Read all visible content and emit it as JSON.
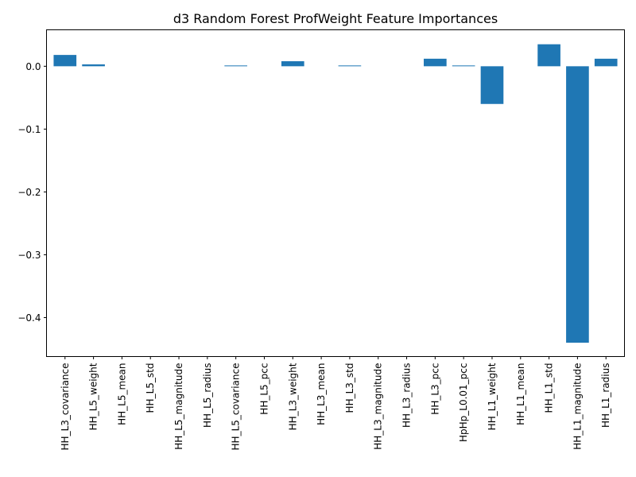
{
  "chart_data": {
    "type": "bar",
    "title": "d3 Random Forest ProfWeight Feature Importances",
    "xlabel": "",
    "ylabel": "",
    "categories": [
      "HH_L3_covariance",
      "HH_L5_weight",
      "HH_L5_mean",
      "HH_L5_std",
      "HH_L5_magnitude",
      "HH_L5_radius",
      "HH_L5_covariance",
      "HH_L5_pcc",
      "HH_L3_weight",
      "HH_L3_mean",
      "HH_L3_std",
      "HH_L3_magnitude",
      "HH_L3_radius",
      "HH_L3_pcc",
      "HpHp_L0.01_pcc",
      "HH_L1_weight",
      "HH_L1_mean",
      "HH_L1_std",
      "HH_L1_magnitude",
      "HH_L1_radius"
    ],
    "values": [
      0.018,
      0.003,
      0.0,
      0.0,
      0.0,
      0.0,
      0.001,
      0.0,
      0.008,
      0.0,
      0.001,
      0.0,
      0.0,
      0.012,
      0.001,
      -0.06,
      0.0,
      0.035,
      -0.44,
      0.012
    ],
    "ylim": [
      -0.462,
      0.058
    ],
    "yticks": [
      0.0,
      -0.1,
      -0.2,
      -0.3,
      -0.4
    ],
    "ytick_labels": [
      "0.0",
      "−0.1",
      "−0.2",
      "−0.3",
      "−0.4"
    ],
    "bar_color": "#1f77b4",
    "grid": false,
    "legend": "none"
  }
}
